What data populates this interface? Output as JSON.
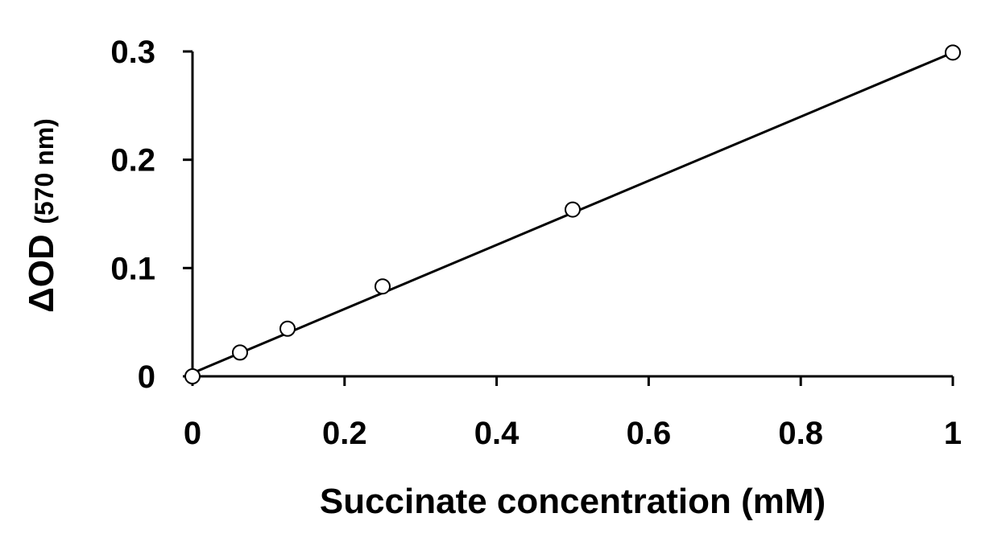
{
  "chart_data": {
    "type": "scatter",
    "title": "",
    "xlabel": "Succinate concentration (mM)",
    "ylabel_main": "ΔOD",
    "ylabel_sub": "(570 nm)",
    "xlim": [
      0,
      1
    ],
    "ylim": [
      0,
      0.3
    ],
    "x_ticks": [
      0,
      0.2,
      0.4,
      0.6,
      0.8,
      1
    ],
    "x_tick_labels": [
      "0",
      "0.2",
      "0.4",
      "0.6",
      "0.8",
      "1"
    ],
    "y_ticks": [
      0,
      0.1,
      0.2,
      0.3
    ],
    "y_tick_labels": [
      "0",
      "0.1",
      "0.2",
      "0.3"
    ],
    "grid": false,
    "legend": "none",
    "series": [
      {
        "marker": "open-circle",
        "x": [
          0,
          0.0625,
          0.125,
          0.25,
          0.5,
          1
        ],
        "y": [
          0.0,
          0.022,
          0.044,
          0.083,
          0.154,
          0.299
        ]
      }
    ],
    "trendline": {
      "type": "linear",
      "x": [
        0,
        1
      ],
      "y": [
        0.003,
        0.299
      ]
    },
    "colors": {
      "axis": "#000000",
      "line": "#000000",
      "marker_stroke": "#000000",
      "marker_fill": "#ffffff"
    }
  }
}
